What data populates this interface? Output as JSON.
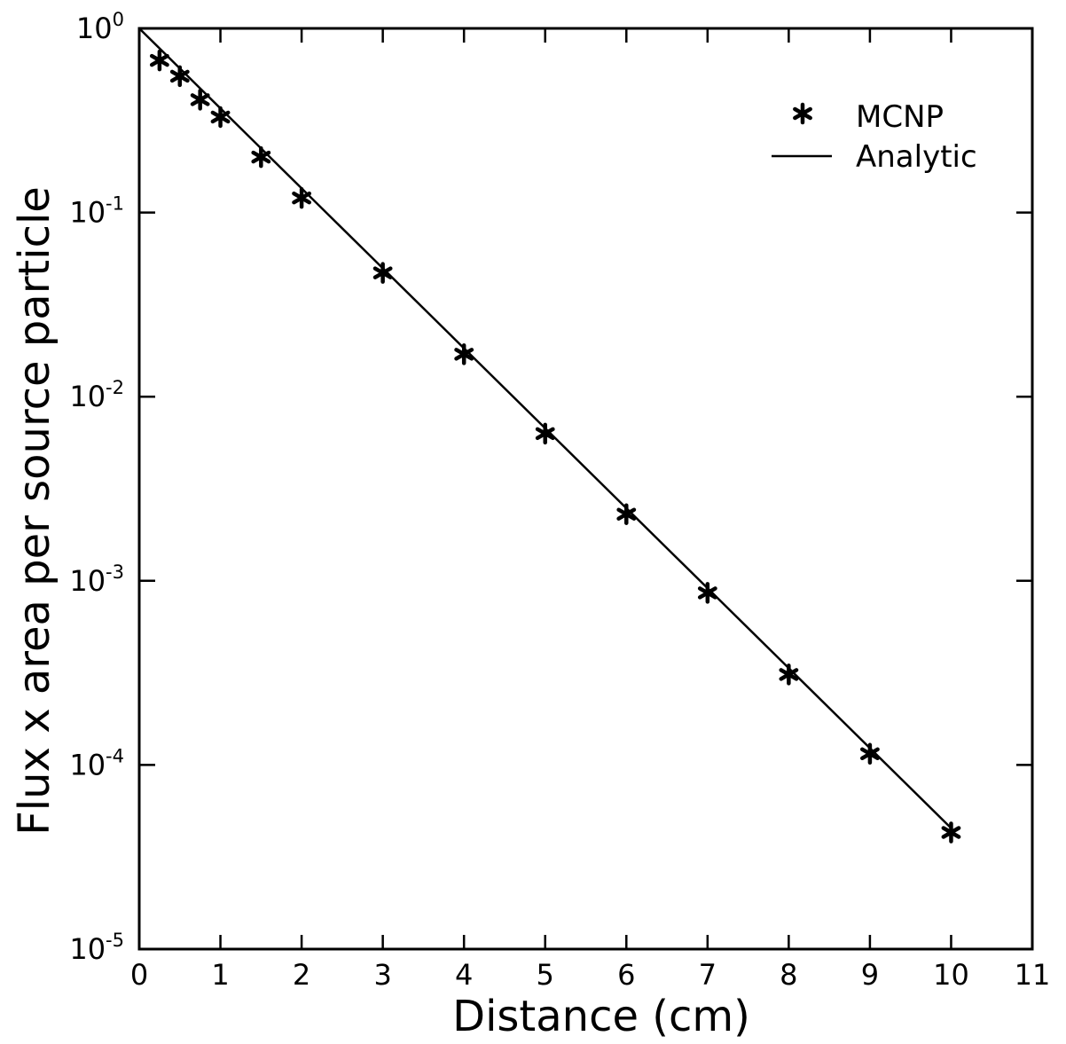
{
  "chart_data": {
    "type": "scatter",
    "xlabel": "Distance (cm)",
    "ylabel": "Flux x area per source particle",
    "xlim": [
      0,
      11
    ],
    "ylim": [
      1e-05,
      1
    ],
    "yscale": "log",
    "grid": false,
    "legend_position": "top-right",
    "x_ticks": [
      "0",
      "1",
      "2",
      "3",
      "4",
      "5",
      "6",
      "7",
      "8",
      "9",
      "10",
      "11"
    ],
    "y_ticks": [
      {
        "base": "10",
        "exp": "0"
      },
      {
        "base": "10",
        "exp": "-1"
      },
      {
        "base": "10",
        "exp": "-2"
      },
      {
        "base": "10",
        "exp": "-3"
      },
      {
        "base": "10",
        "exp": "-4"
      },
      {
        "base": "10",
        "exp": "-5"
      }
    ],
    "series": [
      {
        "name": "MCNP",
        "marker": "asterisk",
        "x": [
          0.25,
          0.5,
          0.75,
          1.0,
          1.5,
          2,
          3,
          4,
          5,
          6,
          7,
          8,
          9,
          10
        ],
        "y": [
          0.67,
          0.55,
          0.41,
          0.33,
          0.2,
          0.12,
          0.047,
          0.017,
          0.0063,
          0.0023,
          0.00086,
          0.00031,
          0.000115,
          4.3e-05
        ]
      },
      {
        "name": "Analytic",
        "marker": "line",
        "x": [
          0,
          10
        ],
        "y": [
          1,
          4.54e-05
        ]
      }
    ]
  }
}
